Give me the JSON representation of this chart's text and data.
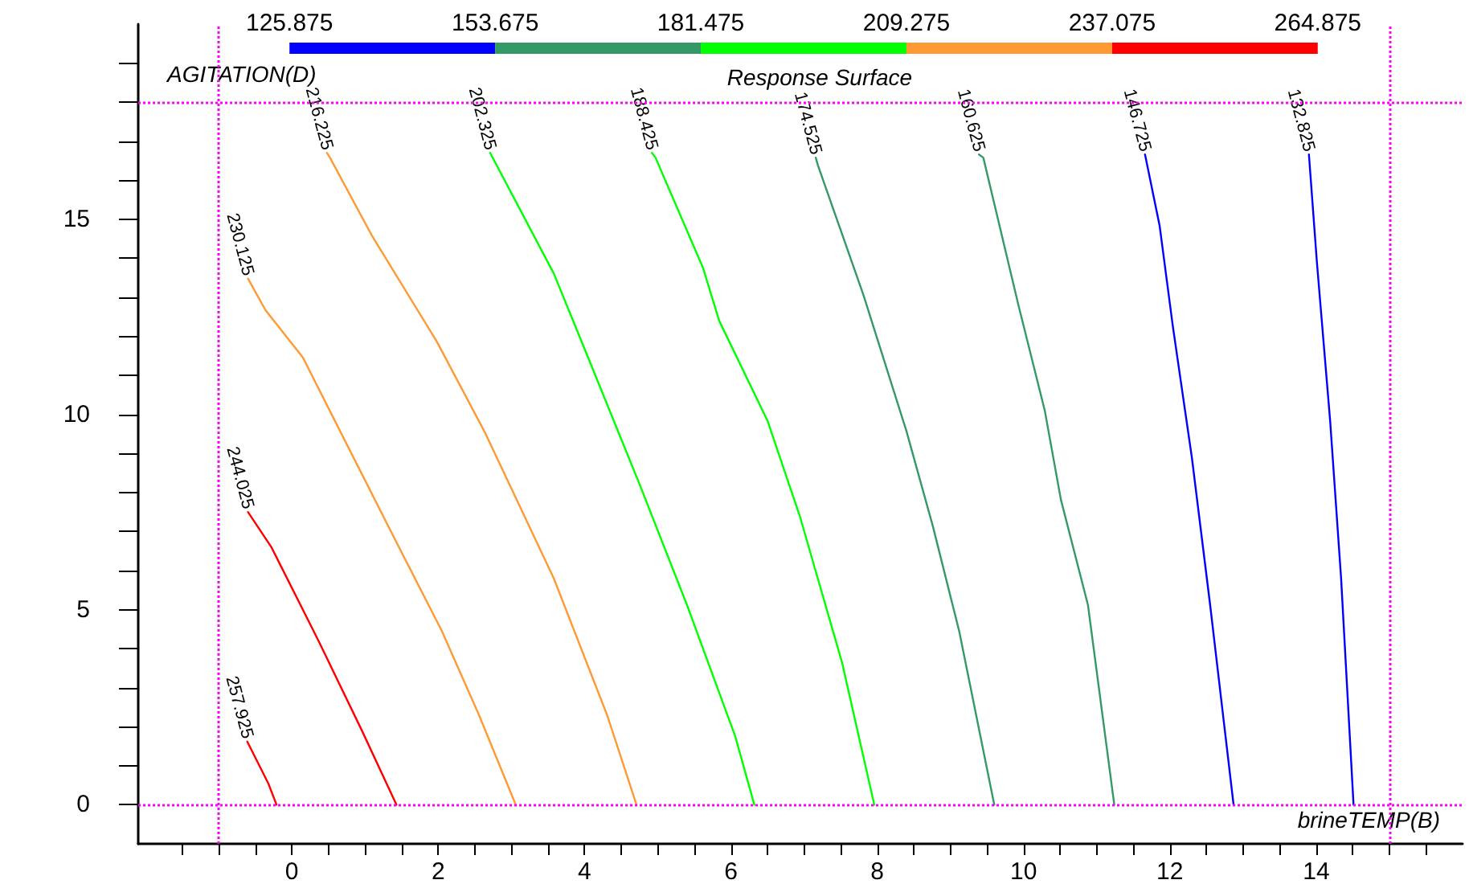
{
  "chart_data": [
    {
      "type": "bar",
      "orientation": "horizontal",
      "categories": [
        null
      ],
      "tick_labels": "x",
      "grid": false,
      "legend": false,
      "xlim": [
        125.875,
        264.875
      ],
      "xticks": [
        125.875,
        153.675,
        181.475,
        209.275,
        237.075,
        264.875
      ],
      "series": [
        {
          "color": "#0000ff",
          "base": [
            125.875
          ],
          "values": [
            27.8
          ]
        },
        {
          "color": "#339966",
          "base": [
            153.675
          ],
          "values": [
            27.8
          ]
        },
        {
          "color": "#00ff00",
          "base": [
            181.475
          ],
          "values": [
            27.8
          ]
        },
        {
          "color": "#ff9933",
          "base": [
            209.275
          ],
          "values": [
            27.8
          ]
        },
        {
          "color": "#ff0000",
          "base": [
            237.075
          ],
          "values": [
            27.8
          ]
        }
      ]
    },
    {
      "type": "line",
      "title": "Response Surface",
      "xlabel": "brineTEMP(B)",
      "ylabel": "AGITATION(D)",
      "xlim": [
        -2.1,
        16
      ],
      "ylim": [
        -1,
        20
      ],
      "xticks": [
        {
          "value": -1.5,
          "label": null
        },
        {
          "value": -1,
          "label": null
        },
        {
          "value": -0.5,
          "label": null
        },
        0,
        {
          "value": 0.5,
          "label": null
        },
        {
          "value": 1,
          "label": null
        },
        {
          "value": 1.5,
          "label": null
        },
        2,
        {
          "value": 2.5,
          "label": null
        },
        {
          "value": 3,
          "label": null
        },
        {
          "value": 3.5,
          "label": null
        },
        4,
        {
          "value": 4.5,
          "label": null
        },
        {
          "value": 5,
          "label": null
        },
        {
          "value": 5.5,
          "label": null
        },
        6,
        {
          "value": 6.5,
          "label": null
        },
        {
          "value": 7,
          "label": null
        },
        {
          "value": 7.5,
          "label": null
        },
        8,
        {
          "value": 8.5,
          "label": null
        },
        {
          "value": 9,
          "label": null
        },
        {
          "value": 9.5,
          "label": null
        },
        10,
        {
          "value": 10.5,
          "label": null
        },
        {
          "value": 11,
          "label": null
        },
        {
          "value": 11.5,
          "label": null
        },
        12,
        {
          "value": 12.5,
          "label": null
        },
        {
          "value": 13,
          "label": null
        },
        {
          "value": 13.5,
          "label": null
        },
        14,
        {
          "value": 14.5,
          "label": null
        },
        {
          "value": 15,
          "label": null
        },
        {
          "value": 15.5,
          "label": null
        }
      ],
      "yticks": [
        0,
        {
          "value": 1,
          "label": null
        },
        {
          "value": 2,
          "label": null
        },
        {
          "value": 3,
          "label": null
        },
        {
          "value": 4,
          "label": null
        },
        5,
        {
          "value": 6,
          "label": null
        },
        {
          "value": 7,
          "label": null
        },
        {
          "value": 8,
          "label": null
        },
        {
          "value": 9,
          "label": null
        },
        10,
        {
          "value": 11,
          "label": null
        },
        {
          "value": 12,
          "label": null
        },
        {
          "value": 13,
          "label": null
        },
        {
          "value": 14,
          "label": null
        },
        15,
        {
          "value": 16,
          "label": null
        },
        {
          "value": 17,
          "label": null
        },
        {
          "value": 18,
          "label": null
        },
        {
          "value": 19,
          "label": null
        }
      ],
      "grid": false,
      "legend": false,
      "marker": "none",
      "line_style": "solid",
      "ref_lines": [
        {
          "axis": "x",
          "value": -1,
          "color": "#ff00ff",
          "line_style": "dotted"
        },
        {
          "axis": "x",
          "value": 15,
          "color": "#ff00ff",
          "line_style": "dotted"
        },
        {
          "axis": "y",
          "value": 0,
          "color": "#ff00ff",
          "line_style": "dotted"
        },
        {
          "axis": "y",
          "value": 18,
          "color": "#ff00ff",
          "line_style": "dotted"
        }
      ],
      "series": [
        {
          "name": "257.925",
          "color": "#ff0000",
          "x": [
            -0.21,
            -0.32,
            -0.61
          ],
          "values": [
            0,
            0.54,
            1.62
          ]
        },
        {
          "name": "244.025",
          "color": "#ff0000",
          "x": [
            1.43,
            0.96,
            0.37,
            -0.28,
            -0.6
          ],
          "values": [
            0,
            1.89,
            4.18,
            6.6,
            7.5
          ]
        },
        {
          "name": "230.125",
          "color": "#ff9933",
          "x": [
            3.06,
            2.56,
            2.05,
            1.39,
            0.66,
            0.15,
            -0.36,
            -0.6
          ],
          "values": [
            0,
            2.29,
            4.45,
            6.87,
            9.57,
            11.46,
            12.67,
            13.48
          ]
        },
        {
          "name": "216.225",
          "color": "#ff9933",
          "x": [
            4.71,
            4.31,
            3.58,
            2.63,
            1.98,
            1.1,
            0.52,
            0.48
          ],
          "values": [
            0,
            2.29,
            5.8,
            9.57,
            11.87,
            14.56,
            16.58,
            16.7
          ]
        },
        {
          "name": "202.325",
          "color": "#00ff00",
          "x": [
            6.32,
            6.06,
            5.4,
            4.75,
            4.02,
            3.58,
            2.71
          ],
          "values": [
            0,
            1.75,
            5.12,
            8.22,
            11.59,
            13.61,
            16.7
          ]
        },
        {
          "name": "188.425",
          "color": "#00ff00",
          "x": [
            7.96,
            7.52,
            6.94,
            6.5,
            5.84,
            5.62,
            4.97,
            4.92
          ],
          "values": [
            0,
            3.64,
            7.41,
            9.84,
            12.4,
            13.75,
            16.58,
            16.7
          ]
        },
        {
          "name": "174.525",
          "color": "#339966",
          "x": [
            9.6,
            9.12,
            8.76,
            8.4,
            7.81,
            7.19,
            7.16
          ],
          "values": [
            0,
            4.45,
            7.14,
            9.57,
            13.07,
            16.38,
            16.58
          ]
        },
        {
          "name": "160.625",
          "color": "#339966",
          "x": [
            11.24,
            10.88,
            10.51,
            10.29,
            9.93,
            9.45,
            9.39
          ],
          "values": [
            0,
            5.12,
            7.82,
            10.1,
            12.8,
            16.58,
            16.66
          ]
        },
        {
          "name": "146.725",
          "color": "#0000ff",
          "x": [
            12.87,
            12.55,
            12.3,
            12.04,
            11.86,
            11.66
          ],
          "values": [
            0,
            5.12,
            8.9,
            12.26,
            14.83,
            16.66
          ]
        },
        {
          "name": "132.825",
          "color": "#0000ff",
          "x": [
            14.51,
            14.34,
            14.19,
            14.01,
            13.9
          ],
          "values": [
            0,
            5.8,
            9.84,
            13.88,
            16.66
          ]
        }
      ]
    }
  ]
}
